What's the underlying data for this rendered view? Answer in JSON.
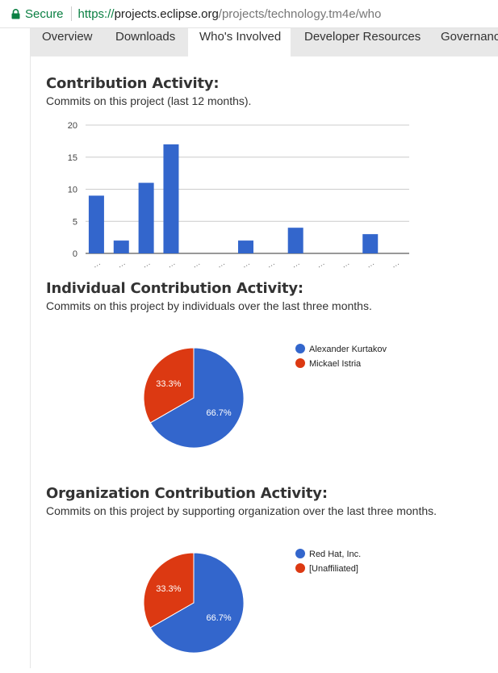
{
  "browser": {
    "secure_label": "Secure",
    "url_scheme": "https://",
    "url_host": "projects.eclipse.org",
    "url_path": "/projects/technology.tm4e/who"
  },
  "tabs": [
    {
      "label": "Overview",
      "active": false
    },
    {
      "label": "Downloads",
      "active": false
    },
    {
      "label": "Who's Involved",
      "active": true
    },
    {
      "label": "Developer Resources",
      "active": false
    },
    {
      "label": "Governance",
      "active": false
    }
  ],
  "colors": {
    "blue": "#3366cc",
    "red": "#dc3912",
    "secure_green": "#0b8043"
  },
  "sections": {
    "contribution": {
      "title": "Contribution Activity:",
      "subtitle": "Commits on this project (last 12 months)."
    },
    "individual": {
      "title": "Individual Contribution Activity:",
      "subtitle": "Commits on this project by individuals over the last three months."
    },
    "organization": {
      "title": "Organization Contribution Activity:",
      "subtitle": "Commits on this project by supporting organization over the last three months."
    }
  },
  "chart_data": [
    {
      "type": "bar",
      "categories": [
        "…",
        "…",
        "…",
        "…",
        "…",
        "…",
        "…",
        "…",
        "…",
        "…",
        "…",
        "…",
        "…"
      ],
      "values": [
        9,
        2,
        11,
        17,
        0,
        0,
        2,
        0,
        4,
        0,
        0,
        3,
        0
      ],
      "yticks": [
        0,
        5,
        10,
        15,
        20
      ],
      "ylim": [
        0,
        20
      ],
      "grid": true,
      "color": "#3366cc"
    },
    {
      "type": "pie",
      "labels": [
        "Alexander Kurtakov",
        "Mickael Istria"
      ],
      "values": [
        66.7,
        33.3
      ],
      "slice_labels": [
        "66.7%",
        "33.3%"
      ],
      "colors": [
        "#3366cc",
        "#dc3912"
      ],
      "legend": "right"
    },
    {
      "type": "pie",
      "labels": [
        "Red Hat, Inc.",
        "[Unaffiliated]"
      ],
      "values": [
        66.7,
        33.3
      ],
      "slice_labels": [
        "66.7%",
        "33.3%"
      ],
      "colors": [
        "#3366cc",
        "#dc3912"
      ],
      "legend": "right"
    }
  ]
}
